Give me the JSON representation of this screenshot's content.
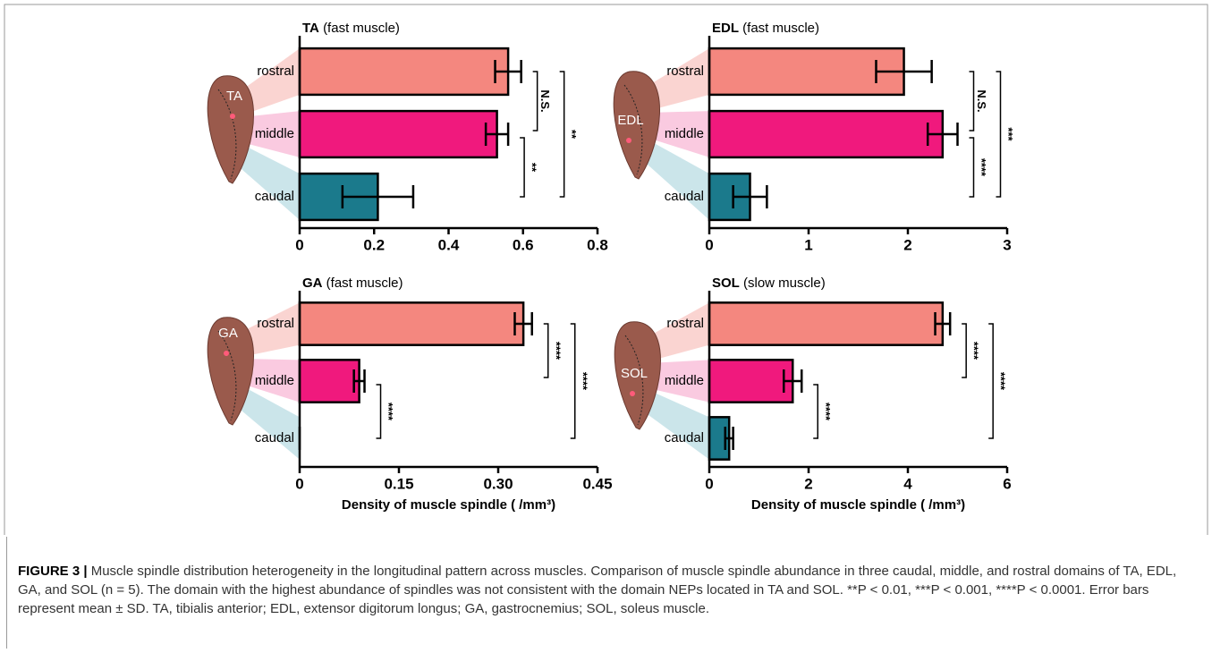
{
  "chart_data": [
    {
      "type": "bar",
      "title": "TA",
      "subtitle": "(fast muscle)",
      "image_label": "TA",
      "categories": [
        "rostral",
        "middle",
        "caudal"
      ],
      "values": [
        0.56,
        0.53,
        0.21
      ],
      "errors": [
        0.035,
        0.03,
        0.095
      ],
      "colors": [
        "#f4877f",
        "#f0197d",
        "#1b7a8c"
      ],
      "xlim": [
        0,
        0.8
      ],
      "xticks": [
        0,
        0.2,
        0.4,
        0.6,
        0.8
      ],
      "annotations": [
        {
          "text": "N.S."
        },
        {
          "text": "**"
        },
        {
          "text": "**"
        }
      ]
    },
    {
      "type": "bar",
      "title": "EDL",
      "subtitle": "(fast muscle)",
      "image_label": "EDL",
      "categories": [
        "rostral",
        "middle",
        "caudal"
      ],
      "values": [
        1.96,
        2.35,
        0.41
      ],
      "errors": [
        0.28,
        0.15,
        0.17
      ],
      "colors": [
        "#f4877f",
        "#f0197d",
        "#1b7a8c"
      ],
      "xlim": [
        0,
        3
      ],
      "xticks": [
        0,
        1,
        2,
        3
      ],
      "annotations": [
        {
          "text": "N.S."
        },
        {
          "text": "****"
        },
        {
          "text": "***"
        }
      ]
    },
    {
      "type": "bar",
      "title": "GA",
      "subtitle": "(fast muscle)",
      "image_label": "GA",
      "categories": [
        "rostral",
        "middle",
        "caudal"
      ],
      "values": [
        0.338,
        0.09,
        0
      ],
      "errors": [
        0.013,
        0.008,
        0
      ],
      "colors": [
        "#f4877f",
        "#f0197d",
        "#1b7a8c"
      ],
      "xlim": [
        0,
        0.45
      ],
      "xticks": [
        0,
        0.15,
        {
          "value": 0.3,
          "label": "0.30"
        },
        0.45
      ],
      "xlabel": "Density of muscle spindle ( /mm³)",
      "annotations": [
        {
          "text": "****"
        },
        {
          "text": "****"
        },
        {
          "text": "****"
        }
      ]
    },
    {
      "type": "bar",
      "title": "SOL",
      "subtitle": "(slow muscle)",
      "image_label": "SOL",
      "categories": [
        "rostral",
        "middle",
        "caudal"
      ],
      "values": [
        4.7,
        1.68,
        0.4
      ],
      "errors": [
        0.15,
        0.18,
        0.08
      ],
      "colors": [
        "#f4877f",
        "#f0197d",
        "#1b7a8c"
      ],
      "xlim": [
        0,
        6
      ],
      "xticks": [
        0,
        2,
        4,
        6
      ],
      "xlabel": "Density of muscle spindle ( /mm³)",
      "annotations": [
        {
          "text": "****"
        },
        {
          "text": "****"
        },
        {
          "text": "****"
        }
      ]
    }
  ],
  "caption": {
    "label": "FIGURE 3 |",
    "text": "Muscle spindle distribution heterogeneity in the longitudinal pattern across muscles. Comparison of muscle spindle abundance in three caudal, middle, and rostral domains of TA, EDL, GA, and SOL (n = 5). The domain with the highest abundance of spindles was not consistent with the domain NEPs located in TA and SOL. **P < 0.01, ***P < 0.001, ****P < 0.0001. Error bars represent mean ± SD. TA, tibialis anterior; EDL, extensor digitorum longus; GA, gastrocnemius; SOL, soleus muscle."
  }
}
